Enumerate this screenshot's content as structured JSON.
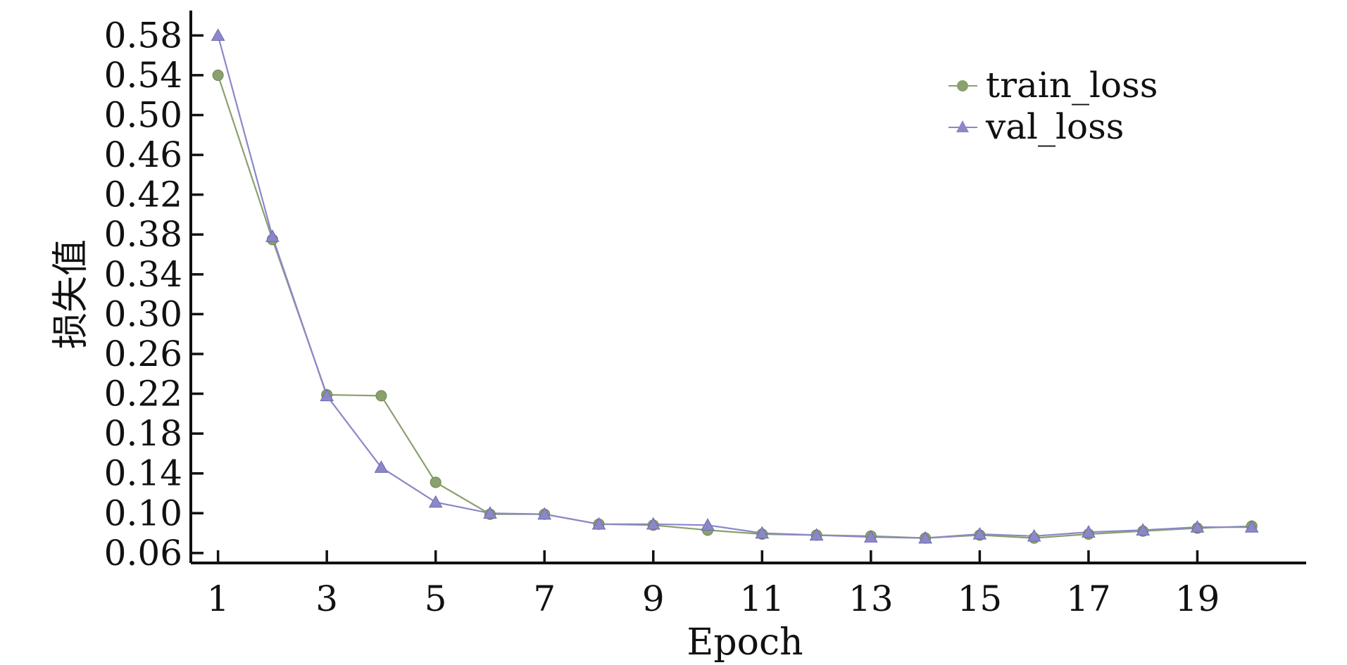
{
  "chart_data": {
    "type": "line",
    "xlabel": "Epoch",
    "ylabel": "损失值",
    "x": [
      1,
      2,
      3,
      4,
      5,
      6,
      7,
      8,
      9,
      10,
      11,
      12,
      13,
      14,
      15,
      16,
      17,
      18,
      19,
      20
    ],
    "xticks": [
      1,
      3,
      5,
      7,
      9,
      11,
      13,
      15,
      17,
      19
    ],
    "yticks": [
      0.06,
      0.1,
      0.14,
      0.18,
      0.22,
      0.26,
      0.3,
      0.34,
      0.38,
      0.42,
      0.46,
      0.5,
      0.54,
      0.58
    ],
    "ytick_labels": [
      "0.06",
      "0.10",
      "0.14",
      "0.18",
      "0.22",
      "0.26",
      "0.30",
      "0.34",
      "0.38",
      "0.42",
      "0.46",
      "0.50",
      "0.54",
      "0.58"
    ],
    "xlim": [
      0.5,
      21.0
    ],
    "ylim": [
      0.05,
      0.605
    ],
    "grid": false,
    "legend_position": "top-right",
    "series": [
      {
        "name": "train_loss",
        "marker": "circle",
        "color": "#8aa06d",
        "values": [
          0.54,
          0.375,
          0.219,
          0.218,
          0.131,
          0.099,
          0.099,
          0.089,
          0.088,
          0.083,
          0.079,
          0.078,
          0.077,
          0.075,
          0.078,
          0.075,
          0.079,
          0.082,
          0.085,
          0.087
        ]
      },
      {
        "name": "val_loss",
        "marker": "triangle",
        "color": "#8b87c9",
        "values": [
          0.58,
          0.378,
          0.218,
          0.146,
          0.111,
          0.1,
          0.099,
          0.089,
          0.089,
          0.088,
          0.08,
          0.078,
          0.076,
          0.075,
          0.079,
          0.077,
          0.081,
          0.083,
          0.086,
          0.086
        ]
      }
    ]
  }
}
